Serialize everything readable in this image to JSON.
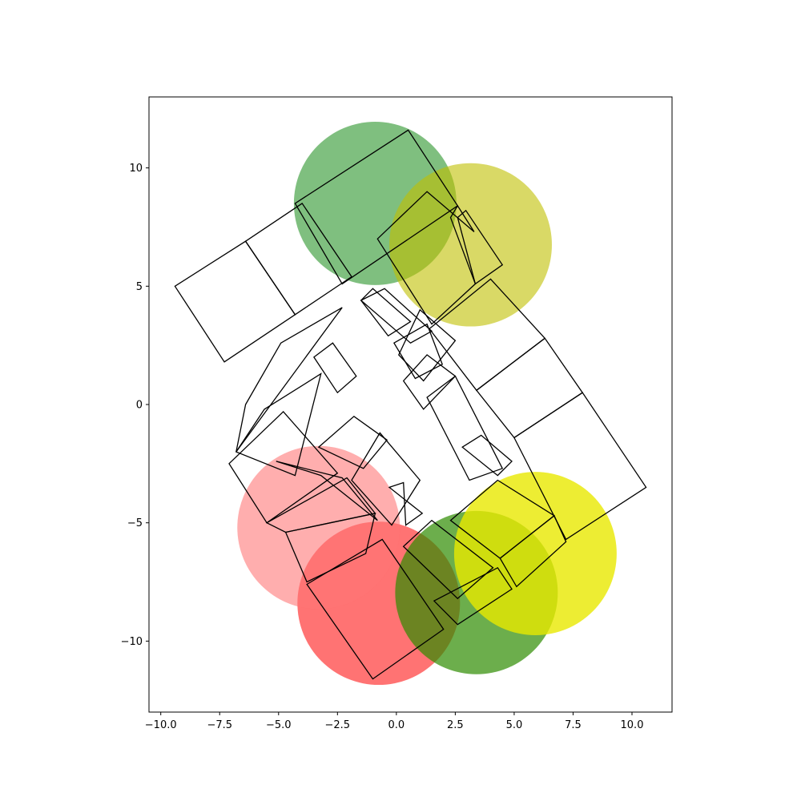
{
  "chart_data": {
    "type": "scatter",
    "title": "",
    "xlabel": "",
    "ylabel": "",
    "xlim": [
      -10.5,
      11.7
    ],
    "ylim": [
      -13.0,
      13.0
    ],
    "grid": false,
    "x_ticks": [
      -10.0,
      -7.5,
      -5.0,
      -2.5,
      0.0,
      2.5,
      5.0,
      7.5,
      10.0
    ],
    "x_tick_labels": [
      "−10.0",
      "−7.5",
      "−5.0",
      "−2.5",
      "0.0",
      "2.5",
      "5.0",
      "7.5",
      "10.0"
    ],
    "y_ticks": [
      10,
      5,
      0,
      -5,
      -10
    ],
    "y_tick_labels": [
      "10",
      "5",
      "0",
      "−5",
      "−10"
    ],
    "circles": [
      {
        "name": "green-top",
        "x": -0.9,
        "y": 8.5,
        "r": 3.45,
        "color": "#008000",
        "alpha": 0.5
      },
      {
        "name": "yellow-top",
        "x": 3.15,
        "y": 6.75,
        "r": 3.45,
        "color": "#bfbf00",
        "alpha": 0.6
      },
      {
        "name": "pink-left",
        "x": -3.3,
        "y": -5.2,
        "r": 3.45,
        "color": "#ff0000",
        "alpha": 0.25
      },
      {
        "name": "red-bottom",
        "x": -0.75,
        "y": -8.4,
        "r": 3.45,
        "color": "#ff0000",
        "alpha": 0.55
      },
      {
        "name": "green-bottom",
        "x": 3.4,
        "y": -7.95,
        "r": 3.45,
        "color": "#2e8b00",
        "alpha": 0.7
      },
      {
        "name": "yellow-right",
        "x": 5.9,
        "y": -6.3,
        "r": 3.45,
        "color": "#e8e800",
        "alpha": 0.8
      },
      {
        "name": "pink-left-over",
        "x": -3.3,
        "y": -5.2,
        "r": 3.45,
        "color": "#ff9a9a",
        "alpha": 0.45
      }
    ],
    "polygons": [
      [
        [
          -9.4,
          5.0
        ],
        [
          -7.3,
          1.8
        ],
        [
          -4.3,
          3.8
        ],
        [
          -6.4,
          6.9
        ]
      ],
      [
        [
          -6.4,
          6.9
        ],
        [
          -4.3,
          3.8
        ],
        [
          -1.9,
          5.4
        ],
        [
          -4.0,
          8.5
        ]
      ],
      [
        [
          -4.3,
          8.5
        ],
        [
          -2.3,
          5.1
        ],
        [
          2.6,
          8.4
        ],
        [
          0.5,
          11.6
        ]
      ],
      [
        [
          -0.8,
          7.0
        ],
        [
          1.3,
          9.0
        ],
        [
          3.3,
          7.3
        ],
        [
          2.6,
          8.4
        ],
        [
          2.3,
          7.9
        ],
        [
          3.35,
          5.1
        ],
        [
          1.5,
          3.4
        ]
      ],
      [
        [
          2.6,
          7.9
        ],
        [
          3.35,
          5.1
        ],
        [
          4.5,
          5.9
        ],
        [
          2.95,
          8.2
        ]
      ],
      [
        [
          -1.5,
          4.4
        ],
        [
          -0.5,
          4.9
        ],
        [
          1.5,
          3.1
        ],
        [
          0.6,
          2.6
        ]
      ],
      [
        [
          -1.0,
          4.9
        ],
        [
          -1.5,
          4.4
        ],
        [
          -0.35,
          2.9
        ],
        [
          0.6,
          3.5
        ]
      ],
      [
        [
          -0.1,
          2.6
        ],
        [
          1.3,
          3.4
        ],
        [
          1.95,
          1.7
        ],
        [
          0.8,
          1.1
        ]
      ],
      [
        [
          1.4,
          3.2
        ],
        [
          4.0,
          5.3
        ],
        [
          6.3,
          2.8
        ],
        [
          3.4,
          0.6
        ]
      ],
      [
        [
          3.4,
          0.6
        ],
        [
          6.3,
          2.8
        ],
        [
          7.9,
          0.5
        ],
        [
          5.0,
          -1.4
        ]
      ],
      [
        [
          5.0,
          -1.4
        ],
        [
          7.9,
          0.5
        ],
        [
          10.6,
          -3.5
        ],
        [
          7.2,
          -5.7
        ]
      ],
      [
        [
          0.1,
          2.1
        ],
        [
          1.15,
          1.0
        ],
        [
          2.5,
          2.7
        ],
        [
          1.0,
          4.0
        ]
      ],
      [
        [
          0.3,
          1.0
        ],
        [
          1.15,
          -0.2
        ],
        [
          2.5,
          1.2
        ],
        [
          1.3,
          2.1
        ]
      ],
      [
        [
          1.3,
          0.3
        ],
        [
          2.5,
          1.2
        ],
        [
          4.5,
          -2.7
        ],
        [
          3.1,
          -3.2
        ]
      ],
      [
        [
          2.8,
          -1.8
        ],
        [
          3.6,
          -1.3
        ],
        [
          4.9,
          -2.4
        ],
        [
          4.3,
          -3.0
        ]
      ],
      [
        [
          -6.4,
          0.0
        ],
        [
          -4.9,
          2.6
        ],
        [
          -2.3,
          4.1
        ],
        [
          -6.8,
          -2.0
        ]
      ],
      [
        [
          -3.3,
          -1.8
        ],
        [
          -1.8,
          -0.5
        ],
        [
          -0.4,
          -1.5
        ],
        [
          -1.4,
          -2.7
        ]
      ],
      [
        [
          -6.8,
          -2.0
        ],
        [
          -5.6,
          -0.2
        ],
        [
          -3.2,
          1.3
        ],
        [
          -4.3,
          -3.0
        ]
      ],
      [
        [
          -3.5,
          2.0
        ],
        [
          -2.7,
          2.6
        ],
        [
          -1.7,
          1.2
        ],
        [
          -2.5,
          0.5
        ]
      ],
      [
        [
          -5.1,
          -2.4
        ],
        [
          -2.3,
          -3.1
        ],
        [
          -0.8,
          -4.9
        ],
        [
          -3.2,
          -3.0
        ]
      ],
      [
        [
          -7.1,
          -2.5
        ],
        [
          -4.8,
          -0.3
        ],
        [
          -2.5,
          -2.9
        ],
        [
          -5.5,
          -5.0
        ]
      ],
      [
        [
          -1.9,
          -3.2
        ],
        [
          -0.7,
          -1.2
        ],
        [
          1.0,
          -3.2
        ],
        [
          -0.2,
          -5.1
        ]
      ],
      [
        [
          -0.3,
          -3.5
        ],
        [
          0.3,
          -3.3
        ],
        [
          0.4,
          -5.1
        ],
        [
          1.1,
          -4.6
        ]
      ],
      [
        [
          -5.5,
          -5.0
        ],
        [
          -2.1,
          -3.1
        ],
        [
          -0.9,
          -4.6
        ],
        [
          -4.7,
          -5.4
        ]
      ],
      [
        [
          -4.7,
          -5.4
        ],
        [
          -0.9,
          -4.6
        ],
        [
          -1.3,
          -6.3
        ],
        [
          -3.8,
          -7.5
        ]
      ],
      [
        [
          -3.8,
          -7.6
        ],
        [
          -0.6,
          -5.7
        ],
        [
          2.0,
          -9.5
        ],
        [
          -1.0,
          -11.6
        ]
      ],
      [
        [
          0.3,
          -6.0
        ],
        [
          1.5,
          -4.9
        ],
        [
          4.1,
          -6.9
        ],
        [
          2.6,
          -8.2
        ]
      ],
      [
        [
          1.6,
          -8.3
        ],
        [
          2.6,
          -9.3
        ],
        [
          4.9,
          -7.8
        ],
        [
          4.3,
          -6.9
        ]
      ],
      [
        [
          2.3,
          -4.9
        ],
        [
          4.3,
          -3.2
        ],
        [
          6.7,
          -4.7
        ],
        [
          4.4,
          -6.5
        ]
      ],
      [
        [
          4.4,
          -6.5
        ],
        [
          6.7,
          -4.7
        ],
        [
          7.2,
          -5.8
        ],
        [
          5.1,
          -7.7
        ]
      ]
    ]
  }
}
